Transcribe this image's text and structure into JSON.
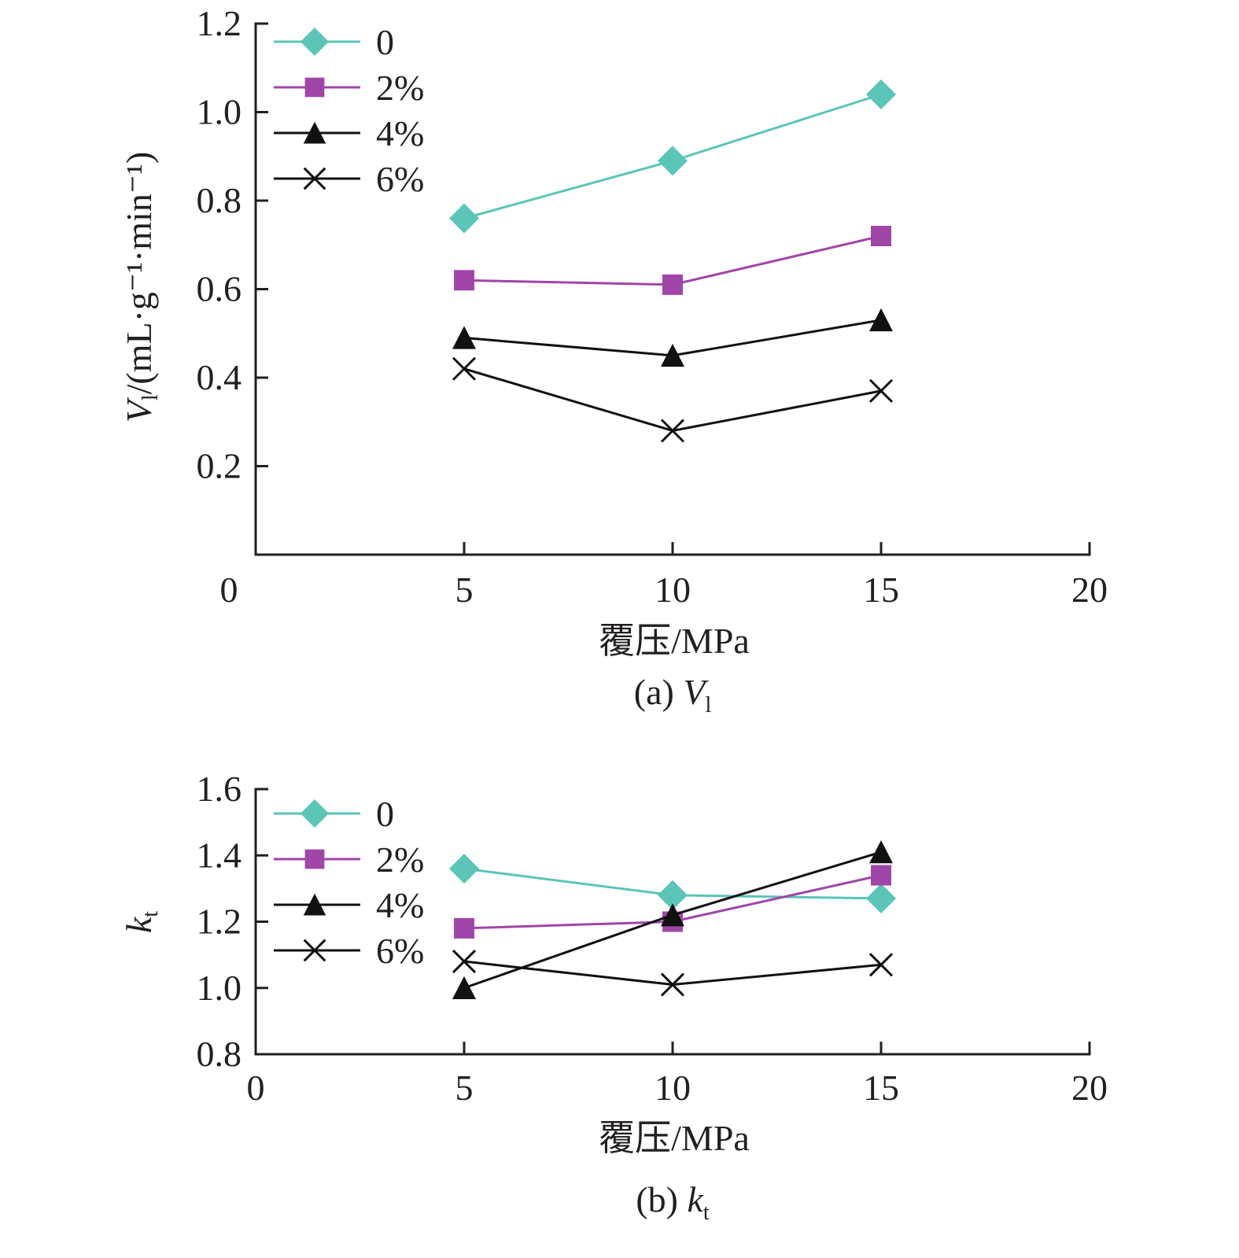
{
  "colors": {
    "teal": "#5bc5b8",
    "purple": "#a046a8",
    "black": "#111111",
    "axis": "#231f20"
  },
  "chart_data": [
    {
      "type": "line",
      "id": "a",
      "caption_prefix": "(a) ",
      "caption_symbol": "V",
      "caption_sub": "l",
      "xlabel": "覆压/MPa",
      "ylabel_symbol": "V",
      "ylabel_sub": "l",
      "ylabel_unit": "/(mL·g⁻¹·min⁻¹)",
      "xlim": [
        0,
        20
      ],
      "ylim": [
        0,
        1.2
      ],
      "xticks": [
        0,
        5,
        10,
        15,
        20
      ],
      "xtick_labels": [
        "0",
        "5",
        "10",
        "15",
        "20"
      ],
      "yticks": [
        0.2,
        0.4,
        0.6,
        0.8,
        1.0,
        1.2
      ],
      "ytick_labels": [
        "0.2",
        "0.4",
        "0.6",
        "0.8",
        "1.0",
        "1.2"
      ],
      "grid": false,
      "legend_position": "top-left",
      "x": [
        5,
        10,
        15
      ],
      "series": [
        {
          "name": "0",
          "marker": "diamond",
          "color": "#5bc5b8",
          "values": [
            0.76,
            0.89,
            1.04
          ]
        },
        {
          "name": "2%",
          "marker": "square",
          "color": "#a046a8",
          "values": [
            0.62,
            0.61,
            0.72
          ]
        },
        {
          "name": "4%",
          "marker": "triangle",
          "color": "#111111",
          "values": [
            0.49,
            0.45,
            0.53
          ]
        },
        {
          "name": "6%",
          "marker": "x",
          "color": "#111111",
          "values": [
            0.42,
            0.28,
            0.37
          ]
        }
      ]
    },
    {
      "type": "line",
      "id": "b",
      "caption_prefix": "(b) ",
      "caption_symbol": "k",
      "caption_sub": "t",
      "xlabel": "覆压/MPa",
      "ylabel_symbol": "k",
      "ylabel_sub": "t",
      "ylabel_unit": "",
      "xlim": [
        0,
        20
      ],
      "ylim": [
        0.8,
        1.6
      ],
      "xticks": [
        0,
        5,
        10,
        15,
        20
      ],
      "xtick_labels": [
        "0",
        "5",
        "10",
        "15",
        "20"
      ],
      "yticks": [
        0.8,
        1.0,
        1.2,
        1.4,
        1.6
      ],
      "ytick_labels": [
        "0.8",
        "1.0",
        "1.2",
        "1.4",
        "1.6"
      ],
      "grid": false,
      "legend_position": "top-left",
      "x": [
        5,
        10,
        15
      ],
      "series": [
        {
          "name": "0",
          "marker": "diamond",
          "color": "#5bc5b8",
          "values": [
            1.36,
            1.28,
            1.27
          ]
        },
        {
          "name": "2%",
          "marker": "square",
          "color": "#a046a8",
          "values": [
            1.18,
            1.2,
            1.34
          ]
        },
        {
          "name": "4%",
          "marker": "triangle",
          "color": "#111111",
          "values": [
            1.0,
            1.22,
            1.41
          ]
        },
        {
          "name": "6%",
          "marker": "x",
          "color": "#111111",
          "values": [
            1.08,
            1.01,
            1.07
          ]
        }
      ]
    }
  ]
}
